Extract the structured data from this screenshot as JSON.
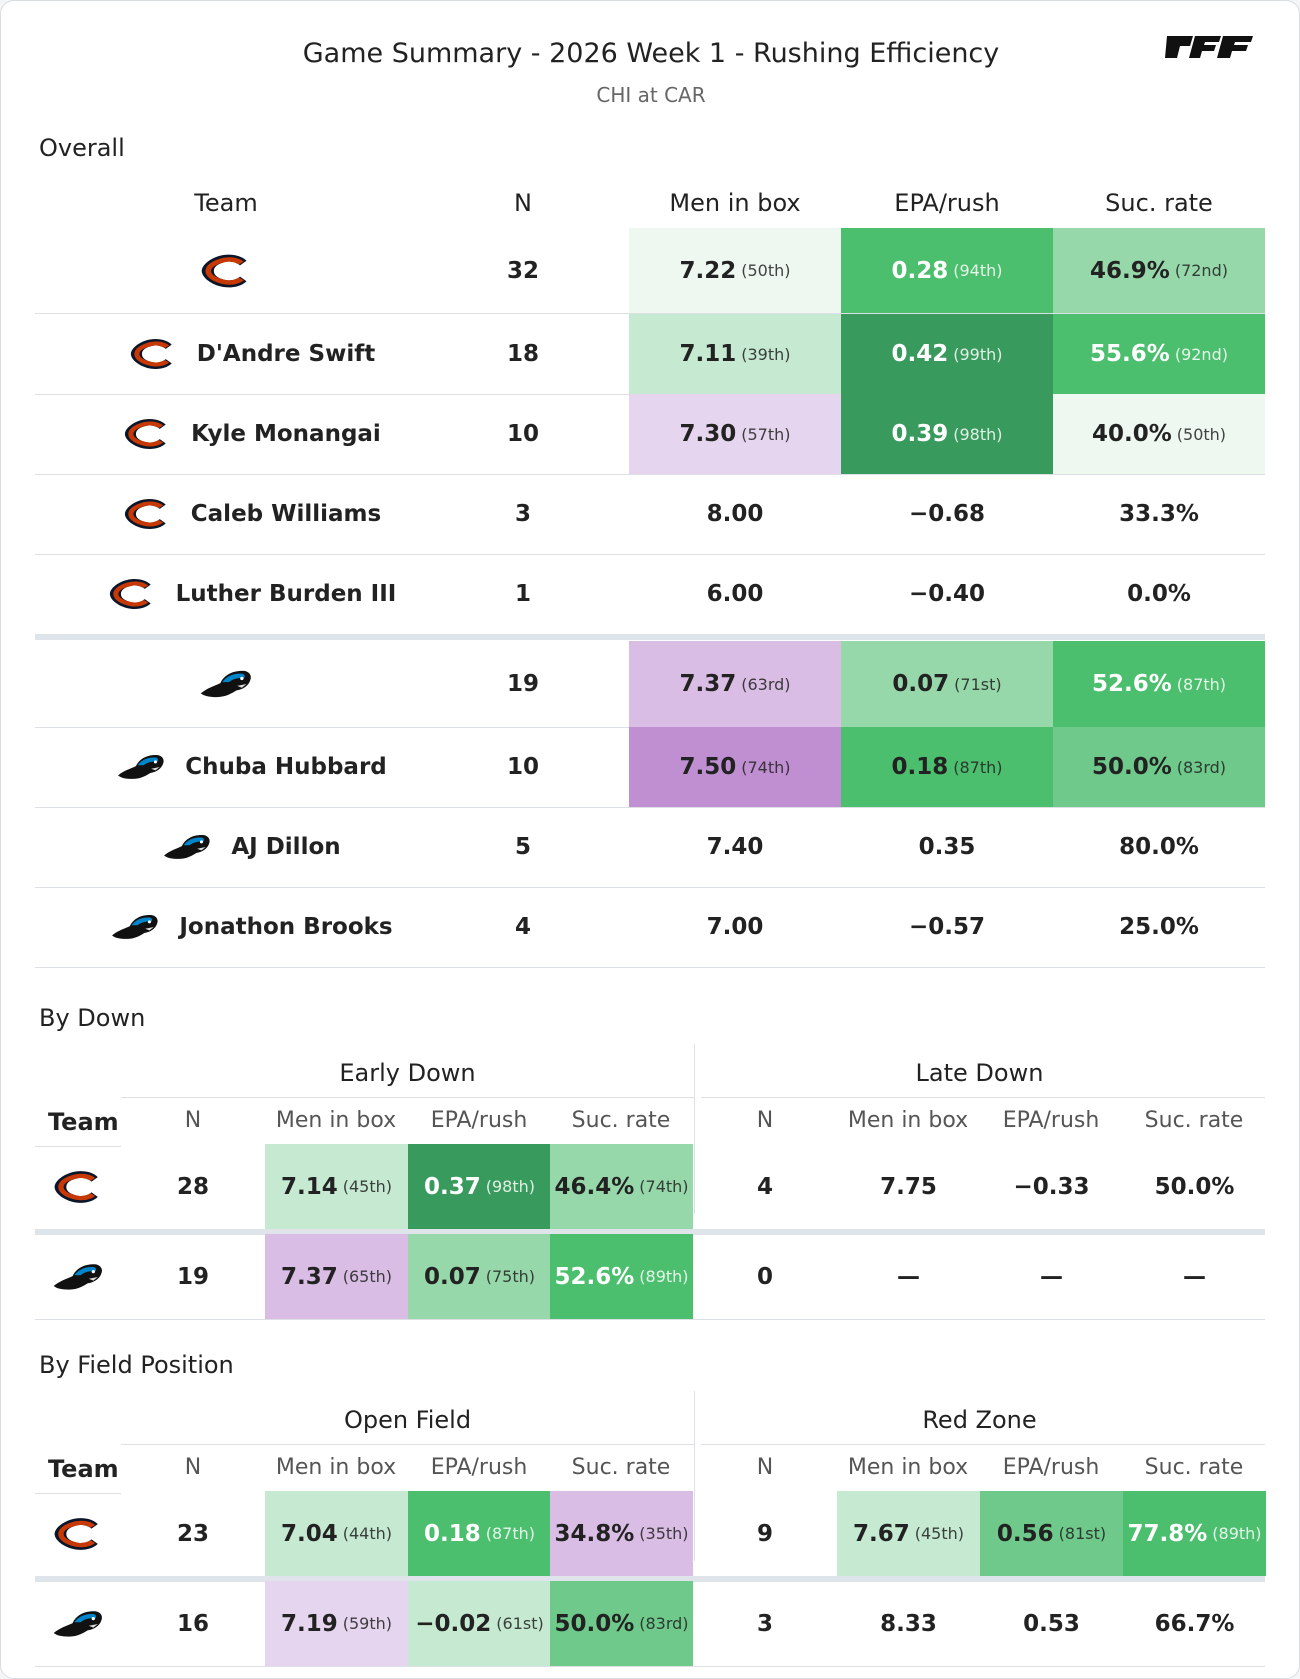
{
  "header": {
    "title": "Game Summary - 2026 Week 1 - Rushing Efficiency",
    "subtitle": "CHI at CAR",
    "logo_icon": "pff-logo-icon"
  },
  "colors": {
    "green_dark": "#389a5c",
    "green": "#4cbf6e",
    "green_mid": "#6ec98b",
    "green_light": "#97d8ab",
    "green_pale": "#c5ead1",
    "green_faint": "#eef8f1",
    "purple_dark": "#bf8fd1",
    "purple": "#d9bde5",
    "purple_light": "#e6d5ee",
    "bears_orange": "#c83803",
    "bears_navy": "#0b162a",
    "panthers_blue": "#0085ca"
  },
  "overall": {
    "section_label": "Overall",
    "columns": [
      "Team",
      "N",
      "Men in box",
      "EPA/rush",
      "Suc. rate"
    ],
    "rows": [
      {
        "team": "CHI",
        "icon": "bears-logo-icon",
        "name": "",
        "n": "32",
        "box": {
          "v": "7.22",
          "r": "(50th)",
          "bg": "green_faint"
        },
        "epa": {
          "v": "0.28",
          "r": "(94th)",
          "bg": "green",
          "dark": true
        },
        "suc": {
          "v": "46.9%",
          "r": "(72nd)",
          "bg": "green_light"
        }
      },
      {
        "team": "CHI",
        "icon": "bears-logo-icon",
        "name": "D'Andre Swift",
        "n": "18",
        "box": {
          "v": "7.11",
          "r": "(39th)",
          "bg": "green_pale"
        },
        "epa": {
          "v": "0.42",
          "r": "(99th)",
          "bg": "green_dark",
          "dark": true
        },
        "suc": {
          "v": "55.6%",
          "r": "(92nd)",
          "bg": "green",
          "dark": true
        }
      },
      {
        "team": "CHI",
        "icon": "bears-logo-icon",
        "name": "Kyle Monangai",
        "n": "10",
        "box": {
          "v": "7.30",
          "r": "(57th)",
          "bg": "purple_light"
        },
        "epa": {
          "v": "0.39",
          "r": "(98th)",
          "bg": "green_dark",
          "dark": true
        },
        "suc": {
          "v": "40.0%",
          "r": "(50th)",
          "bg": "green_faint"
        }
      },
      {
        "team": "CHI",
        "icon": "bears-logo-icon",
        "name": "Caleb Williams",
        "n": "3",
        "box": {
          "v": "8.00"
        },
        "epa": {
          "v": "−0.68"
        },
        "suc": {
          "v": "33.3%"
        }
      },
      {
        "team": "CHI",
        "icon": "bears-logo-icon",
        "name": "Luther Burden III",
        "n": "1",
        "box": {
          "v": "6.00"
        },
        "epa": {
          "v": "−0.40"
        },
        "suc": {
          "v": "0.0%"
        }
      },
      {
        "team": "CAR",
        "icon": "panthers-logo-icon",
        "name": "",
        "n": "19",
        "box": {
          "v": "7.37",
          "r": "(63rd)",
          "bg": "purple"
        },
        "epa": {
          "v": "0.07",
          "r": "(71st)",
          "bg": "green_light"
        },
        "suc": {
          "v": "52.6%",
          "r": "(87th)",
          "bg": "green",
          "dark": true
        }
      },
      {
        "team": "CAR",
        "icon": "panthers-logo-icon",
        "name": "Chuba Hubbard",
        "n": "10",
        "box": {
          "v": "7.50",
          "r": "(74th)",
          "bg": "purple_dark"
        },
        "epa": {
          "v": "0.18",
          "r": "(87th)",
          "bg": "green"
        },
        "suc": {
          "v": "50.0%",
          "r": "(83rd)",
          "bg": "green_mid"
        }
      },
      {
        "team": "CAR",
        "icon": "panthers-logo-icon",
        "name": "AJ Dillon",
        "n": "5",
        "box": {
          "v": "7.40"
        },
        "epa": {
          "v": "0.35"
        },
        "suc": {
          "v": "80.0%"
        }
      },
      {
        "team": "CAR",
        "icon": "panthers-logo-icon",
        "name": "Jonathon Brooks",
        "n": "4",
        "box": {
          "v": "7.00"
        },
        "epa": {
          "v": "−0.57"
        },
        "suc": {
          "v": "25.0%"
        }
      }
    ]
  },
  "by_down": {
    "section_label": "By Down",
    "group_left": "Early Down",
    "group_right": "Late Down",
    "team_label": "Team",
    "columns": [
      "N",
      "Men in box",
      "EPA/rush",
      "Suc. rate"
    ],
    "rows": [
      {
        "team": "CHI",
        "icon": "bears-logo-icon",
        "left": {
          "n": "28",
          "box": {
            "v": "7.14",
            "r": "(45th)",
            "bg": "green_pale"
          },
          "epa": {
            "v": "0.37",
            "r": "(98th)",
            "bg": "green_dark",
            "dark": true
          },
          "suc": {
            "v": "46.4%",
            "r": "(74th)",
            "bg": "green_light"
          }
        },
        "right": {
          "n": "4",
          "box": {
            "v": "7.75"
          },
          "epa": {
            "v": "−0.33"
          },
          "suc": {
            "v": "50.0%"
          }
        }
      },
      {
        "team": "CAR",
        "icon": "panthers-logo-icon",
        "left": {
          "n": "19",
          "box": {
            "v": "7.37",
            "r": "(65th)",
            "bg": "purple"
          },
          "epa": {
            "v": "0.07",
            "r": "(75th)",
            "bg": "green_light"
          },
          "suc": {
            "v": "52.6%",
            "r": "(89th)",
            "bg": "green",
            "dark": true
          }
        },
        "right": {
          "n": "0",
          "box": {
            "v": "—"
          },
          "epa": {
            "v": "—"
          },
          "suc": {
            "v": "—"
          }
        }
      }
    ]
  },
  "by_field": {
    "section_label": "By Field Position",
    "group_left": "Open Field",
    "group_right": "Red Zone",
    "team_label": "Team",
    "columns": [
      "N",
      "Men in box",
      "EPA/rush",
      "Suc. rate"
    ],
    "rows": [
      {
        "team": "CHI",
        "icon": "bears-logo-icon",
        "left": {
          "n": "23",
          "box": {
            "v": "7.04",
            "r": "(44th)",
            "bg": "green_pale"
          },
          "epa": {
            "v": "0.18",
            "r": "(87th)",
            "bg": "green",
            "dark": true
          },
          "suc": {
            "v": "34.8%",
            "r": "(35th)",
            "bg": "purple"
          }
        },
        "right": {
          "n": "9",
          "box": {
            "v": "7.67",
            "r": "(45th)",
            "bg": "green_pale"
          },
          "epa": {
            "v": "0.56",
            "r": "(81st)",
            "bg": "green_mid"
          },
          "suc": {
            "v": "77.8%",
            "r": "(89th)",
            "bg": "green",
            "dark": true
          }
        }
      },
      {
        "team": "CAR",
        "icon": "panthers-logo-icon",
        "left": {
          "n": "16",
          "box": {
            "v": "7.19",
            "r": "(59th)",
            "bg": "purple_light"
          },
          "epa": {
            "v": "−0.02",
            "r": "(61st)",
            "bg": "green_pale"
          },
          "suc": {
            "v": "50.0%",
            "r": "(83rd)",
            "bg": "green_mid"
          }
        },
        "right": {
          "n": "3",
          "box": {
            "v": "8.33"
          },
          "epa": {
            "v": "0.53"
          },
          "suc": {
            "v": "66.7%"
          }
        }
      }
    ]
  }
}
